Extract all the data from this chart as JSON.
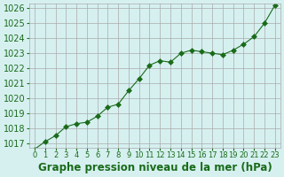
{
  "x": [
    0,
    1,
    2,
    3,
    4,
    5,
    6,
    7,
    8,
    9,
    10,
    11,
    12,
    13,
    14,
    15,
    16,
    17,
    18,
    19,
    20,
    21,
    22,
    23
  ],
  "y": [
    1016.6,
    1017.1,
    1017.5,
    1018.1,
    1018.3,
    1018.4,
    1018.8,
    1019.4,
    1019.6,
    1020.5,
    1021.3,
    1022.2,
    1022.5,
    1022.4,
    1023.0,
    1023.2,
    1023.1,
    1023.0,
    1022.9,
    1023.2,
    1023.6,
    1024.1,
    1025.0,
    1026.2
  ],
  "line_color": "#1a6b1a",
  "marker": "D",
  "marker_size": 3,
  "bg_color": "#d6f0f0",
  "grid_color": "#aaaaaa",
  "xlabel": "Graphe pression niveau de la mer (hPa)",
  "xlabel_fontsize": 8.5,
  "ylabel_fontsize": 7,
  "ytick_min": 1017,
  "ytick_max": 1026,
  "ytick_step": 1,
  "xtick_labels": [
    "0",
    "1",
    "2",
    "3",
    "4",
    "5",
    "6",
    "7",
    "8",
    "9",
    "10",
    "11",
    "12",
    "13",
    "14",
    "15",
    "16",
    "17",
    "18",
    "19",
    "20",
    "21",
    "22",
    "23"
  ],
  "tick_color": "#1a6b1a",
  "label_color": "#1a6b1a"
}
